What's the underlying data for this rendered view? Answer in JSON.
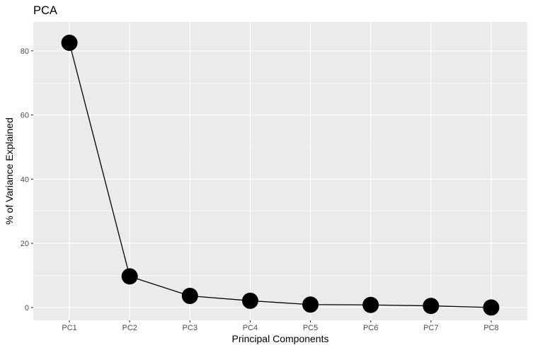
{
  "chart_data": {
    "type": "line",
    "title": "PCA",
    "xlabel": "Principal Components",
    "ylabel": "% of Variance Explained",
    "categories": [
      "PC1",
      "PC2",
      "PC3",
      "PC4",
      "PC5",
      "PC6",
      "PC7",
      "PC8"
    ],
    "series": [
      {
        "values": [
          82.5,
          9.7,
          3.6,
          2.1,
          0.9,
          0.8,
          0.5,
          0.0
        ]
      }
    ],
    "ylim": [
      -4,
      89
    ],
    "yticks": [
      0,
      20,
      40,
      60,
      80
    ],
    "grid": true,
    "colors": {
      "panel": "#ebebeb",
      "grid_major": "#ffffff",
      "line": "#000000",
      "point": "#000000",
      "tick_text": "#4d4d4d"
    }
  }
}
